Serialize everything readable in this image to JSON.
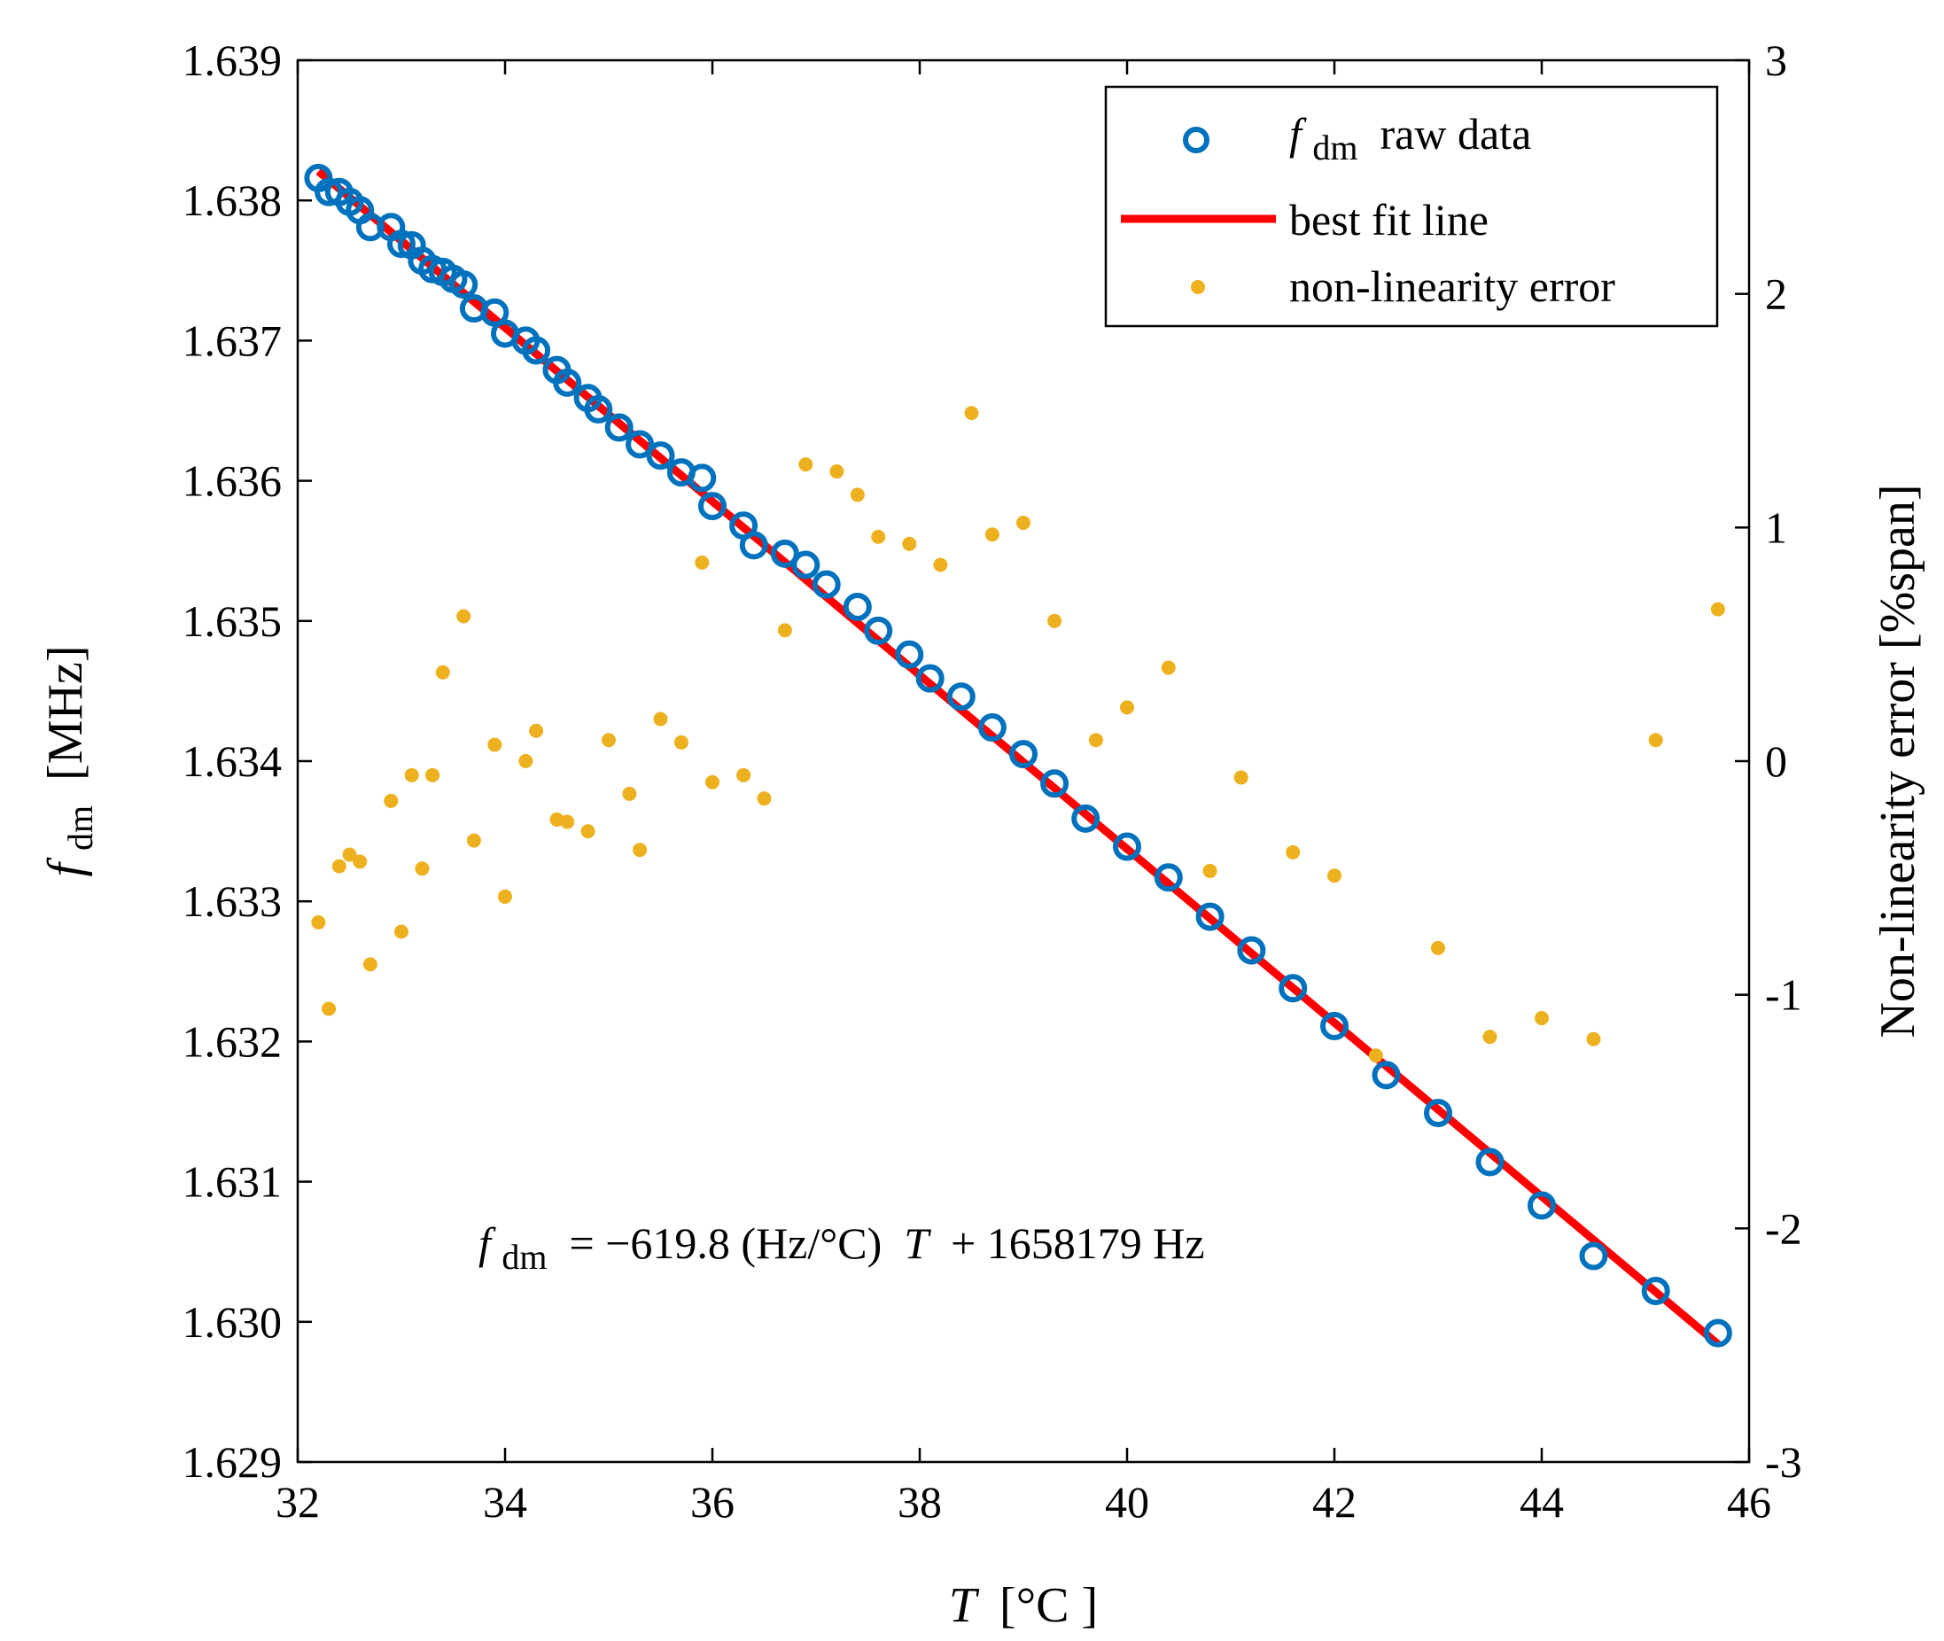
{
  "chart_data": {
    "type": "scatter",
    "xlabel_var": "T",
    "xlabel_unit": "[°C ]",
    "ylabel_left_var": "f",
    "ylabel_left_sub": "dm",
    "ylabel_left_unit": "[MHz]",
    "ylabel_right": "Non-linearity error [%span]",
    "xlim": [
      32,
      46
    ],
    "ylim_left": [
      1.629,
      1.639
    ],
    "ylim_right": [
      -3,
      3
    ],
    "x_ticks": [
      "32",
      "34",
      "36",
      "38",
      "40",
      "42",
      "44",
      "46"
    ],
    "y_left_ticks": [
      "1.629",
      "1.630",
      "1.631",
      "1.632",
      "1.633",
      "1.634",
      "1.635",
      "1.636",
      "1.637",
      "1.638",
      "1.639"
    ],
    "y_right_ticks": [
      "-3",
      "-2",
      "-1",
      "0",
      "1",
      "2",
      "3"
    ],
    "legend": {
      "position": "top-right",
      "raw_var": "f",
      "raw_sub": "dm",
      "raw_rest": " raw data",
      "fit": "best fit line",
      "error": "non-linearity error"
    },
    "equation": {
      "var": "f",
      "sub": "dm",
      "middle": " = −619.8 (Hz/°C) ",
      "T": "T",
      "end": " + 1658179 Hz"
    },
    "colors": {
      "raw": "#0072BD",
      "fit": "#FF0000",
      "error": "#EDB120"
    },
    "fit_line": {
      "x": [
        32.2,
        45.7
      ],
      "y_mhz": [
        1.638208,
        1.629841
      ]
    },
    "series": [
      {
        "name": "f_dm raw data",
        "axis": "left",
        "x": [
          32.2,
          32.3,
          32.4,
          32.5,
          32.6,
          32.7,
          32.9,
          33.0,
          33.1,
          33.2,
          33.3,
          33.4,
          33.5,
          33.6,
          33.7,
          33.9,
          34.0,
          34.2,
          34.3,
          34.5,
          34.6,
          34.8,
          34.9,
          35.1,
          35.3,
          35.5,
          35.7,
          35.9,
          36.0,
          36.3,
          36.4,
          36.7,
          36.9,
          37.1,
          37.4,
          37.6,
          37.9,
          38.1,
          38.4,
          38.7,
          39.0,
          39.3,
          39.6,
          40.0,
          40.4,
          40.8,
          41.2,
          41.6,
          42.0,
          42.5,
          43.0,
          43.5,
          44.0,
          44.5,
          45.1,
          45.7
        ],
        "y": [
          1.63816,
          1.63806,
          1.63806,
          1.63799,
          1.63793,
          1.63781,
          1.63781,
          1.63769,
          1.63768,
          1.63757,
          1.63751,
          1.63749,
          1.63744,
          1.6374,
          1.63723,
          1.6372,
          1.63705,
          1.637,
          1.63693,
          1.63679,
          1.6367,
          1.63659,
          1.63651,
          1.63638,
          1.63626,
          1.63618,
          1.63606,
          1.63602,
          1.63582,
          1.63568,
          1.63554,
          1.63548,
          1.6354,
          1.63526,
          1.6351,
          1.63493,
          1.63476,
          1.63459,
          1.63446,
          1.63424,
          1.63405,
          1.63384,
          1.63359,
          1.63339,
          1.63317,
          1.63289,
          1.63265,
          1.63238,
          1.63211,
          1.63176,
          1.63149,
          1.63114,
          1.63083,
          1.63047,
          1.63022,
          1.62992
        ]
      },
      {
        "name": "non-linearity error",
        "axis": "right",
        "x": [
          32.2,
          32.3,
          32.4,
          32.5,
          32.6,
          32.7,
          32.9,
          33.0,
          33.1,
          33.2,
          33.3,
          33.4,
          33.6,
          33.7,
          33.9,
          34.0,
          34.2,
          34.3,
          34.5,
          34.6,
          34.8,
          35.0,
          35.2,
          35.3,
          35.5,
          35.7,
          35.9,
          36.0,
          36.3,
          36.5,
          36.7,
          36.9,
          37.2,
          37.4,
          37.6,
          37.9,
          38.2,
          38.5,
          38.7,
          39.0,
          39.3,
          39.7,
          40.0,
          40.4,
          40.8,
          41.1,
          41.6,
          42.0,
          42.4,
          43.0,
          43.5,
          44.0,
          44.5,
          45.1,
          45.7
        ],
        "y": [
          -0.69,
          -1.06,
          -0.45,
          -0.4,
          -0.43,
          -0.87,
          -0.17,
          -0.73,
          -0.06,
          -0.46,
          -0.06,
          0.38,
          0.62,
          -0.34,
          0.07,
          -0.58,
          0.0,
          0.13,
          -0.25,
          -0.26,
          -0.3,
          0.09,
          -0.14,
          -0.38,
          0.18,
          0.08,
          0.85,
          -0.09,
          -0.06,
          -0.16,
          0.56,
          1.27,
          1.24,
          1.14,
          0.96,
          0.93,
          0.84,
          1.49,
          0.97,
          1.02,
          0.6,
          0.09,
          0.23,
          0.4,
          -0.47,
          -0.07,
          -0.39,
          -0.49,
          -1.26,
          -0.8,
          -1.18,
          -1.1,
          -1.19,
          0.09,
          0.65
        ]
      }
    ]
  }
}
